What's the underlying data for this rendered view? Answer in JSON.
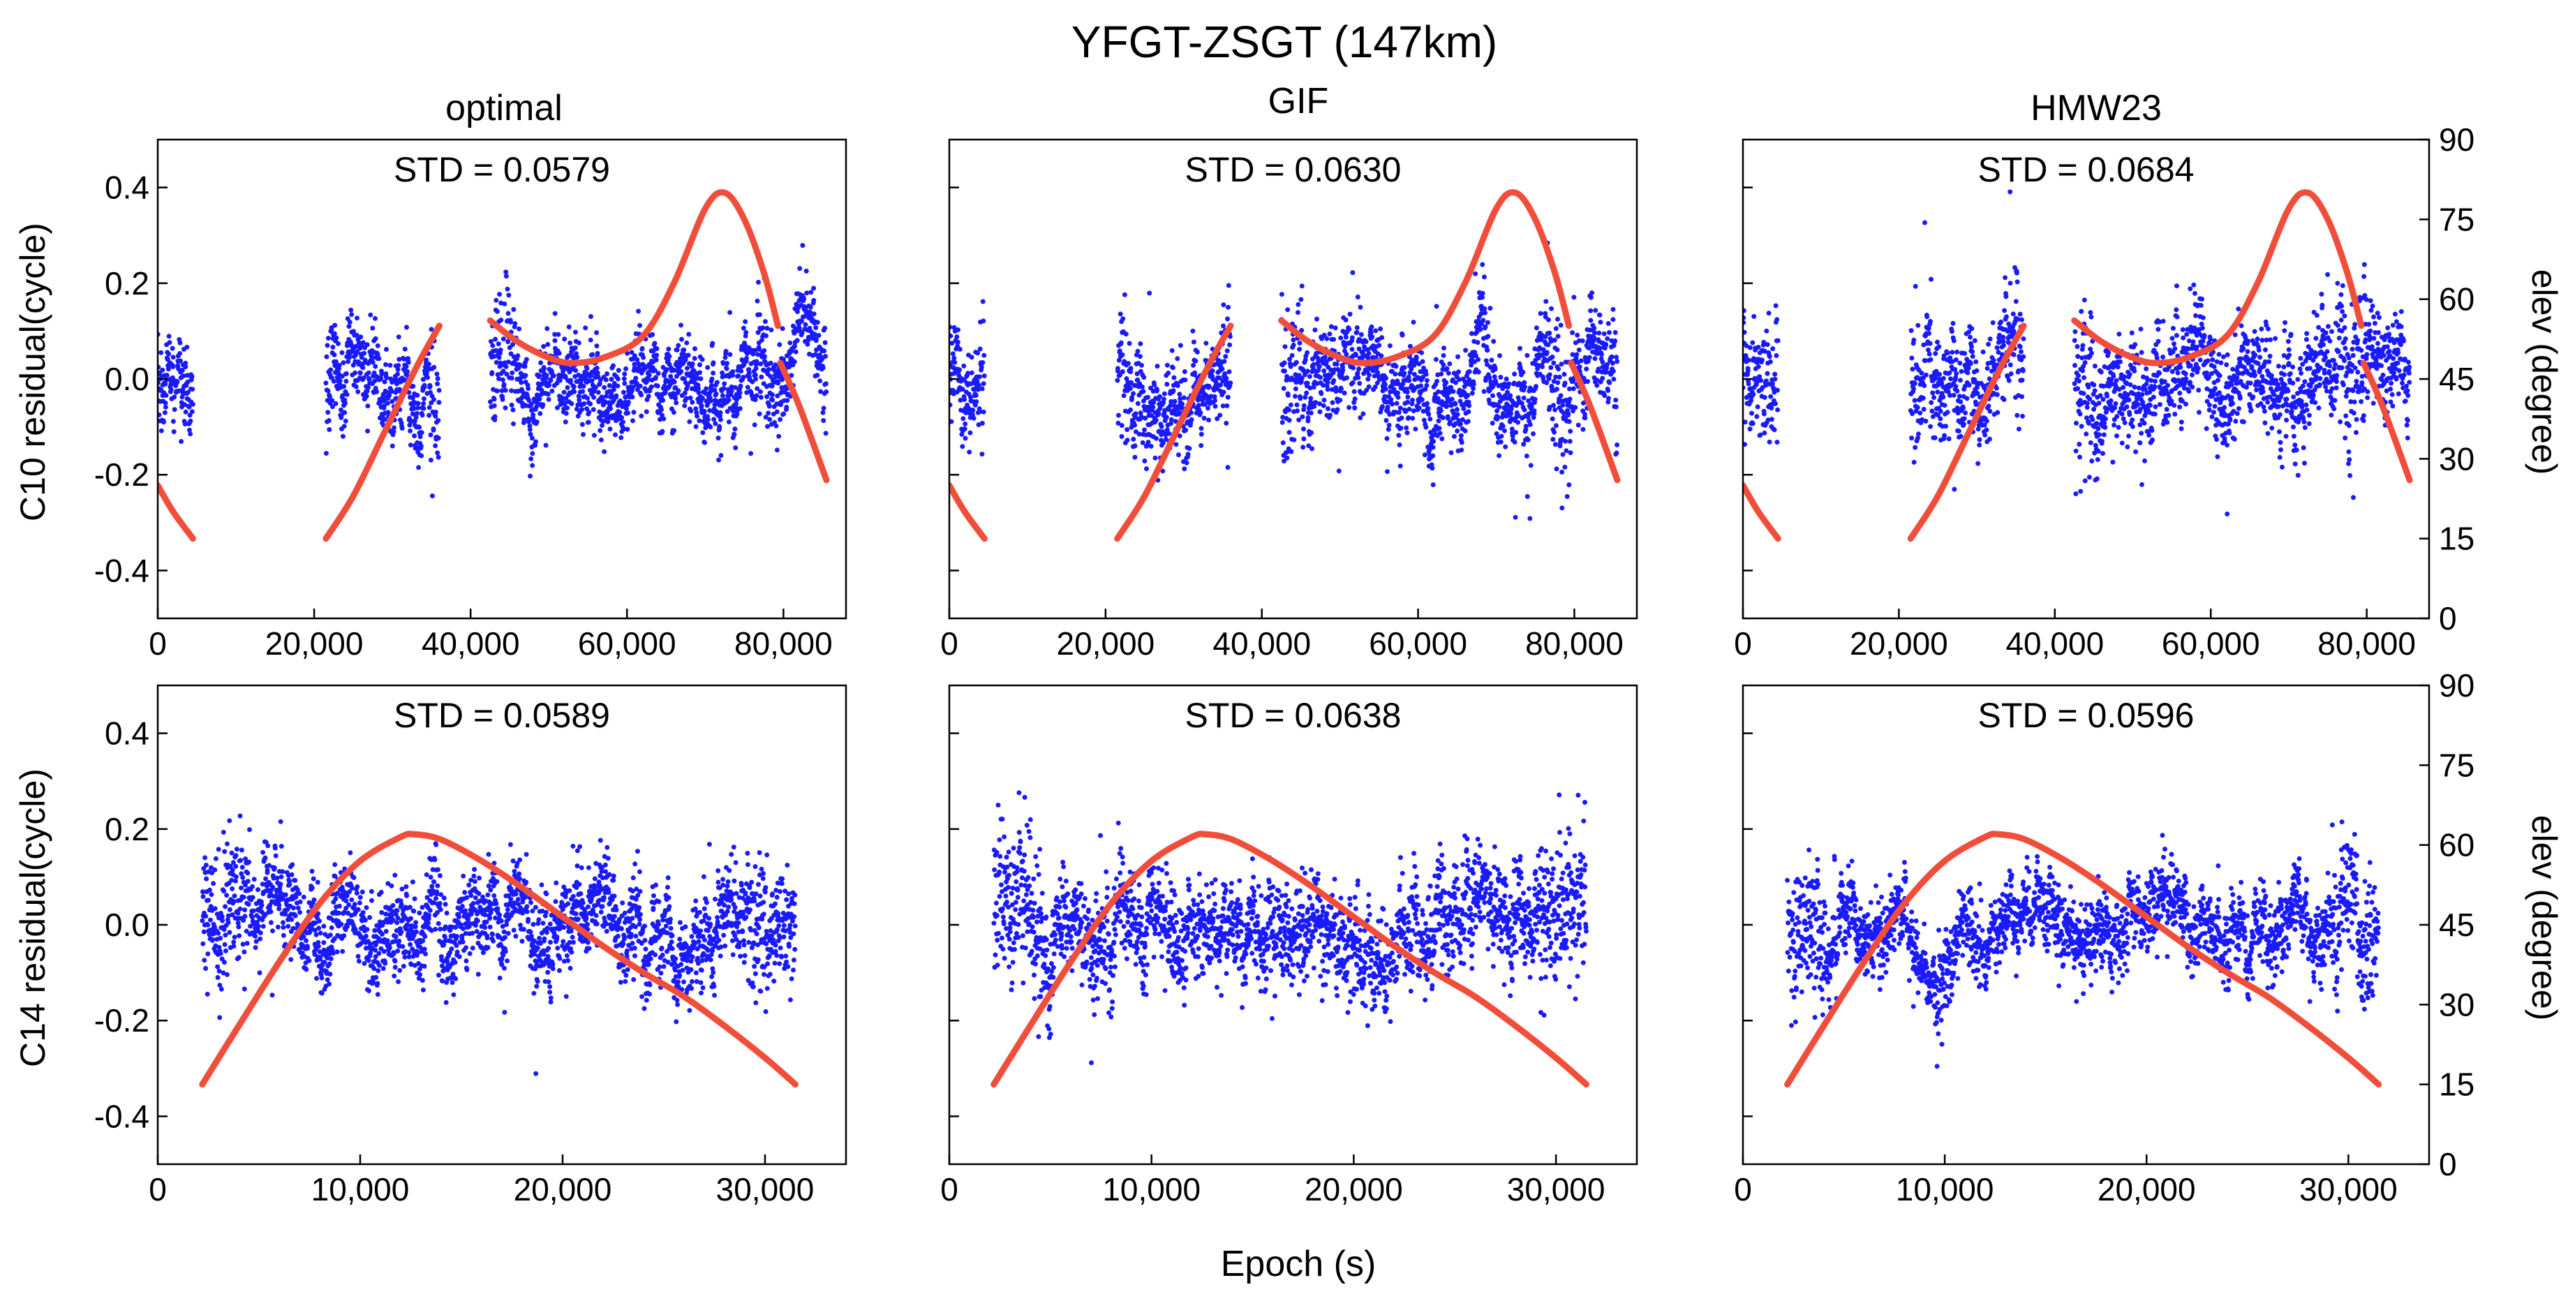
{
  "chart_data": {
    "type": "scatter",
    "title": "YFGT-ZSGT (147km)",
    "xlabel": "Epoch (s)",
    "columns": [
      "optimal",
      "GIF",
      "HMW23"
    ],
    "rows": [
      {
        "ylabel": "C10 residual(cycle)",
        "y2label": "elev (degree)",
        "xlim": [
          0,
          88000
        ],
        "ylim": [
          -0.5,
          0.5
        ],
        "y2lim": [
          0,
          90
        ],
        "xticks": [
          0,
          20000,
          40000,
          60000,
          80000
        ],
        "xtick_labels": [
          "0",
          "20,000",
          "40,000",
          "60,000",
          "80,000"
        ],
        "yticks": [
          -0.4,
          -0.2,
          0.0,
          0.2,
          0.4
        ],
        "ytick_labels": [
          "-0.4",
          "-0.2",
          "0.0",
          "0.2",
          "0.4"
        ],
        "y2ticks": [
          0,
          15,
          30,
          45,
          60,
          75,
          90
        ],
        "y2tick_labels": [
          "0",
          "15",
          "30",
          "45",
          "60",
          "75",
          "90"
        ],
        "segments": [
          [
            0,
            4500
          ],
          [
            21500,
            36000
          ],
          [
            42500,
            79500
          ],
          [
            79500,
            85500
          ]
        ],
        "elevation_series": {
          "name": "elev",
          "axis": "right",
          "segments": [
            {
              "x": [
                0,
                2000,
                4500
              ],
              "y": [
                25,
                20,
                15
              ]
            },
            {
              "x": [
                21500,
                25000,
                29000,
                33000,
                36000
              ],
              "y": [
                15,
                23,
                35,
                47,
                55
              ]
            },
            {
              "x": [
                42500,
                46000,
                50000,
                53000,
                57000,
                62000,
                66000,
                70000,
                72500,
                75000,
                77500,
                79300
              ],
              "y": [
                56,
                52,
                49,
                48,
                49,
                53,
                63,
                77,
                80,
                75,
                65,
                55
              ]
            },
            {
              "x": [
                79600,
                82000,
                85500
              ],
              "y": [
                48,
                40,
                26
              ]
            }
          ]
        },
        "panels": [
          {
            "column": "optimal",
            "std_label": "STD = 0.0579",
            "std": 0.0579,
            "spread": 1.0
          },
          {
            "column": "GIF",
            "std_label": "STD = 0.0630",
            "std": 0.063,
            "spread": 1.09
          },
          {
            "column": "HMW23",
            "std_label": "STD = 0.0684",
            "std": 0.0684,
            "spread": 1.18
          }
        ]
      },
      {
        "ylabel": "C14 residual(cycle)",
        "y2label": "elev (degree)",
        "xlim": [
          0,
          34000
        ],
        "ylim": [
          -0.5,
          0.5
        ],
        "y2lim": [
          0,
          90
        ],
        "xticks": [
          0,
          10000,
          20000,
          30000
        ],
        "xtick_labels": [
          "0",
          "10,000",
          "20,000",
          "30,000"
        ],
        "yticks": [
          -0.4,
          -0.2,
          0.0,
          0.2,
          0.4
        ],
        "ytick_labels": [
          "-0.4",
          "-0.2",
          "0.0",
          "0.2",
          "0.4"
        ],
        "y2ticks": [
          0,
          15,
          30,
          45,
          60,
          75,
          90
        ],
        "y2tick_labels": [
          "0",
          "15",
          "30",
          "45",
          "60",
          "75",
          "90"
        ],
        "segments": [
          [
            2200,
            31500
          ]
        ],
        "elevation_series": {
          "name": "elev",
          "axis": "right",
          "segments": [
            {
              "x": [
                2200,
                4000,
                6000,
                8000,
                10000,
                12000,
                12700,
                14000,
                16000,
                18000,
                20000,
                22000,
                24000,
                26000,
                28000,
                30000,
                31500
              ],
              "y": [
                15,
                26,
                38,
                49,
                57,
                61.5,
                62,
                61,
                57,
                52,
                46.5,
                41,
                36,
                31.5,
                26,
                20,
                15
              ]
            }
          ]
        },
        "panels": [
          {
            "column": "optimal",
            "std_label": "STD = 0.0589",
            "std": 0.0589,
            "spread": 1.15
          },
          {
            "column": "GIF",
            "std_label": "STD = 0.0638",
            "std": 0.0638,
            "spread": 1.2
          },
          {
            "column": "HMW23",
            "std_label": "STD = 0.0596",
            "std": 0.0596,
            "spread": 1.0
          }
        ]
      }
    ]
  },
  "colors": {
    "residual": "#1a1aff",
    "elevation": "#f04e3a",
    "axis": "#000000"
  }
}
